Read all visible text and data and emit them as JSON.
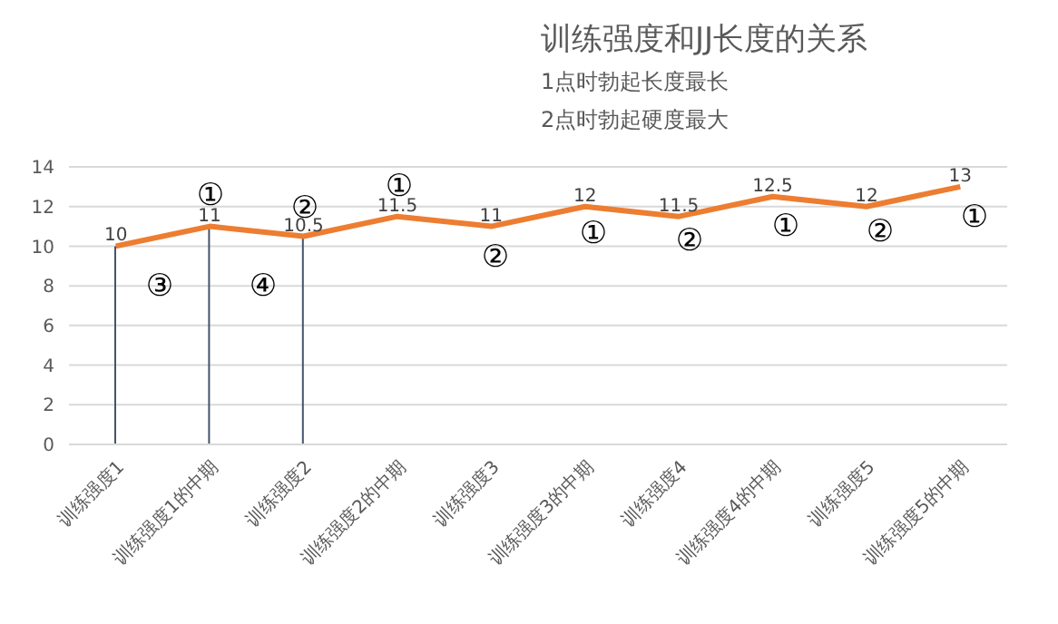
{
  "chart_data": {
    "type": "line",
    "title": "训练强度和JJ长度的关系",
    "annotations": [
      "1点时勃起长度最长",
      "2点时勃起硬度最大",
      "③",
      "①",
      "④",
      "②",
      "①",
      "②",
      "①",
      "②",
      "①",
      "②",
      "①"
    ],
    "categories": [
      "训练强度1",
      "训练强度1的中期",
      "训练强度2",
      "训练强度2的中期",
      "训练强度3",
      "训练强度3的中期",
      "训练强度4",
      "训练强度4的中期",
      "训练强度5",
      "训练强度5的中期"
    ],
    "series": [
      {
        "color": "#ed7d31",
        "values": [
          10,
          11,
          10.5,
          11.5,
          11,
          12,
          11.5,
          12.5,
          12,
          13
        ],
        "value_labels": [
          "10",
          "11",
          "10.5",
          "11.5",
          "11",
          "12",
          "11.5",
          "12.5",
          "12",
          "13"
        ]
      },
      {
        "type": "bar",
        "color": "#44546a",
        "values": [
          10,
          11,
          10.5,
          null,
          null,
          null,
          null,
          null,
          null,
          null
        ]
      }
    ],
    "ylim": [
      0,
      14
    ],
    "yticks": [
      0,
      2,
      4,
      6,
      8,
      10,
      12,
      14
    ],
    "grid": "y",
    "marker": "none",
    "legend": false
  }
}
